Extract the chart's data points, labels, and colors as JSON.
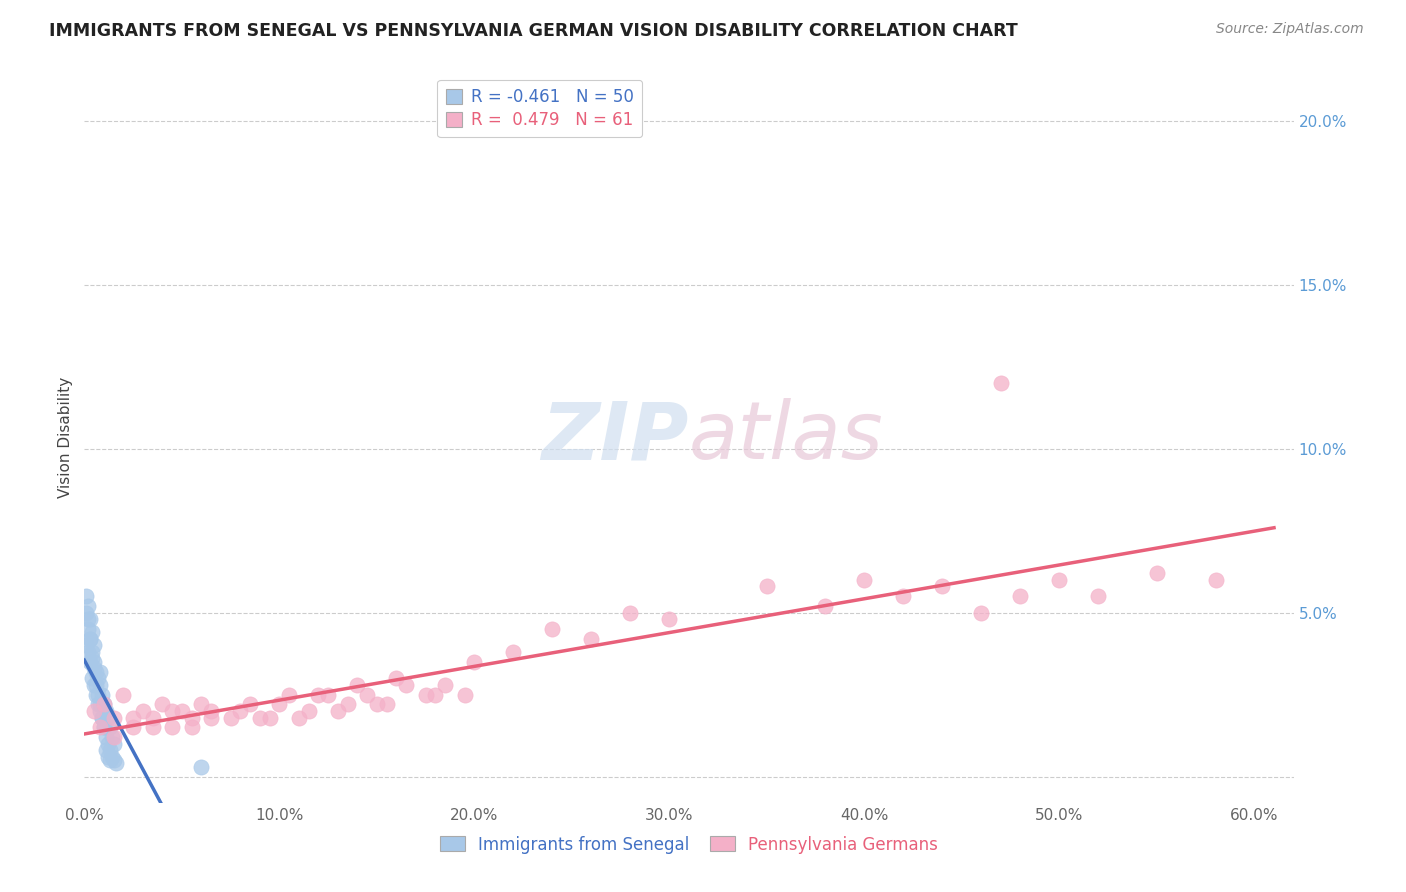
{
  "title": "IMMIGRANTS FROM SENEGAL VS PENNSYLVANIA GERMAN VISION DISABILITY CORRELATION CHART",
  "source": "Source: ZipAtlas.com",
  "ylabel": "Vision Disability",
  "xlim": [
    0.0,
    0.62
  ],
  "ylim": [
    -0.008,
    0.215
  ],
  "xtick_vals": [
    0.0,
    0.1,
    0.2,
    0.3,
    0.4,
    0.5,
    0.6
  ],
  "ytick_vals": [
    0.0,
    0.05,
    0.1,
    0.15,
    0.2
  ],
  "ytick_labels": [
    "",
    "5.0%",
    "10.0%",
    "15.0%",
    "20.0%"
  ],
  "legend_labels": [
    "Immigrants from Senegal",
    "Pennsylvania Germans"
  ],
  "senegal_color": "#a8c8e8",
  "penn_german_color": "#f4b0c8",
  "senegal_line_color": "#4472c4",
  "penn_german_line_color": "#e8607a",
  "grid_color": "#cccccc",
  "background_color": "#ffffff",
  "R_senegal": -0.461,
  "N_senegal": 50,
  "R_penn": 0.479,
  "N_penn": 61,
  "senegal_x": [
    0.001,
    0.002,
    0.002,
    0.003,
    0.003,
    0.004,
    0.004,
    0.005,
    0.005,
    0.006,
    0.006,
    0.007,
    0.007,
    0.008,
    0.008,
    0.009,
    0.009,
    0.01,
    0.01,
    0.011,
    0.011,
    0.012,
    0.012,
    0.013,
    0.013,
    0.014,
    0.014,
    0.015,
    0.015,
    0.016,
    0.001,
    0.002,
    0.003,
    0.004,
    0.005,
    0.006,
    0.007,
    0.008,
    0.009,
    0.01,
    0.001,
    0.002,
    0.003,
    0.004,
    0.005,
    0.011,
    0.012,
    0.013,
    0.06,
    0.008
  ],
  "senegal_y": [
    0.04,
    0.038,
    0.045,
    0.035,
    0.042,
    0.03,
    0.038,
    0.028,
    0.035,
    0.025,
    0.032,
    0.022,
    0.03,
    0.02,
    0.028,
    0.018,
    0.025,
    0.015,
    0.022,
    0.012,
    0.02,
    0.01,
    0.018,
    0.008,
    0.015,
    0.006,
    0.012,
    0.005,
    0.01,
    0.004,
    0.05,
    0.048,
    0.042,
    0.036,
    0.033,
    0.028,
    0.025,
    0.022,
    0.018,
    0.015,
    0.055,
    0.052,
    0.048,
    0.044,
    0.04,
    0.008,
    0.006,
    0.005,
    0.003,
    0.032
  ],
  "penn_x": [
    0.005,
    0.01,
    0.015,
    0.02,
    0.025,
    0.03,
    0.035,
    0.04,
    0.045,
    0.05,
    0.055,
    0.06,
    0.065,
    0.08,
    0.09,
    0.1,
    0.11,
    0.12,
    0.13,
    0.14,
    0.15,
    0.16,
    0.18,
    0.2,
    0.22,
    0.24,
    0.26,
    0.28,
    0.3,
    0.35,
    0.38,
    0.4,
    0.42,
    0.44,
    0.46,
    0.48,
    0.5,
    0.52,
    0.55,
    0.58,
    0.008,
    0.015,
    0.025,
    0.035,
    0.045,
    0.055,
    0.065,
    0.075,
    0.085,
    0.095,
    0.105,
    0.115,
    0.125,
    0.135,
    0.145,
    0.155,
    0.165,
    0.175,
    0.185,
    0.195,
    0.47
  ],
  "penn_y": [
    0.02,
    0.022,
    0.018,
    0.025,
    0.015,
    0.02,
    0.018,
    0.022,
    0.015,
    0.02,
    0.018,
    0.022,
    0.018,
    0.02,
    0.018,
    0.022,
    0.018,
    0.025,
    0.02,
    0.028,
    0.022,
    0.03,
    0.025,
    0.035,
    0.038,
    0.045,
    0.042,
    0.05,
    0.048,
    0.058,
    0.052,
    0.06,
    0.055,
    0.058,
    0.05,
    0.055,
    0.06,
    0.055,
    0.062,
    0.06,
    0.015,
    0.012,
    0.018,
    0.015,
    0.02,
    0.015,
    0.02,
    0.018,
    0.022,
    0.018,
    0.025,
    0.02,
    0.025,
    0.022,
    0.025,
    0.022,
    0.028,
    0.025,
    0.028,
    0.025,
    0.12
  ]
}
